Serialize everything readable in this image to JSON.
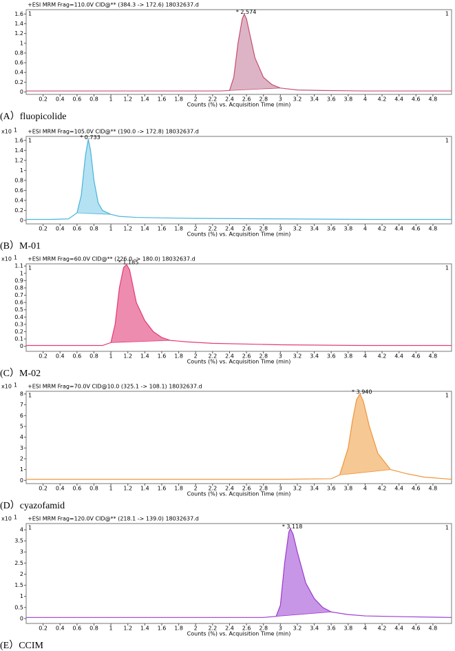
{
  "chart_data": [
    {
      "type": "line",
      "title": "+ESI MRM Frag=110.0V CID@** (384.3 -> 172.6) 18032637.d",
      "x_label": "Counts (%) vs. Acquisition Time (min)",
      "caption": "(A）fluopicolide",
      "peak_label": "* 2.574",
      "corner_labels": [
        "1",
        "1"
      ],
      "color": "#c8506e",
      "fill": "#ddb4c6",
      "x": [
        0,
        0.5,
        1,
        1.5,
        2,
        2.3,
        2.4,
        2.45,
        2.5,
        2.55,
        2.574,
        2.6,
        2.65,
        2.7,
        2.8,
        2.9,
        3.0,
        3.2,
        3.5,
        4,
        4.5,
        5.02
      ],
      "values": [
        0.02,
        0.02,
        0.02,
        0.02,
        0.02,
        0.02,
        0.03,
        0.3,
        1.0,
        1.5,
        1.6,
        1.5,
        1.1,
        0.7,
        0.3,
        0.15,
        0.08,
        0.04,
        0.03,
        0.02,
        0.02,
        0.02
      ],
      "shaded_x": [
        2.4,
        3.0
      ],
      "xlim": [
        0,
        5.02
      ],
      "ylim": [
        -0.05,
        1.69
      ],
      "xticks": [
        0.2,
        0.4,
        0.6,
        0.8,
        1,
        1.2,
        1.4,
        1.6,
        1.8,
        2,
        2.2,
        2.4,
        2.6,
        2.8,
        3,
        3.2,
        3.4,
        3.6,
        3.8,
        4,
        4.2,
        4.4,
        4.6,
        4.8
      ],
      "yticks": [
        0,
        0.2,
        0.4,
        0.6,
        0.8,
        1,
        1.2,
        1.4,
        1.6
      ]
    },
    {
      "type": "line",
      "title": "+ESI MRM Frag=105.0V CID@** (190.0 -> 172.8) 18032637.d",
      "x_label": "Counts (%) vs. Acquisition Time (min)",
      "caption": "(B）M-01",
      "peak_label": "* 0.733",
      "corner_labels": [
        "1",
        "1"
      ],
      "y_multiplier": "x10",
      "y_exponent": "1",
      "color": "#4ab4dc",
      "fill": "#b4e2f2",
      "x": [
        0,
        0.3,
        0.5,
        0.6,
        0.65,
        0.7,
        0.733,
        0.76,
        0.8,
        0.85,
        0.9,
        1.0,
        1.1,
        1.3,
        1.6,
        2,
        3,
        4,
        5.02
      ],
      "values": [
        0.02,
        0.02,
        0.03,
        0.15,
        0.5,
        1.3,
        1.62,
        1.4,
        0.8,
        0.35,
        0.2,
        0.12,
        0.08,
        0.06,
        0.05,
        0.04,
        0.03,
        0.02,
        0.02
      ],
      "shaded_x": [
        0.55,
        1.0
      ],
      "xlim": [
        0,
        5.02
      ],
      "ylim": [
        -0.07,
        1.68
      ],
      "xticks": [
        0.2,
        0.4,
        0.6,
        0.8,
        1,
        1.2,
        1.4,
        1.6,
        1.8,
        2,
        2.2,
        2.4,
        2.6,
        2.8,
        3,
        3.2,
        3.4,
        3.6,
        3.8,
        4,
        4.2,
        4.4,
        4.6,
        4.8
      ],
      "yticks": [
        0,
        0.2,
        0.4,
        0.6,
        0.8,
        1,
        1.2,
        1.4,
        1.6
      ]
    },
    {
      "type": "line",
      "title": "+ESI MRM Frag=60.0V CID@** (226.0 -> 180.0) 18032637.d",
      "x_label": "Counts (%) vs. Acquisition Time (min)",
      "caption": "(C）M-02",
      "peak_label": "* 1.185",
      "corner_labels": [
        "1",
        "1"
      ],
      "y_multiplier": "x10",
      "y_exponent": "1",
      "color": "#e33c74",
      "fill": "#ee8cb0",
      "x": [
        0,
        0.5,
        0.9,
        1.0,
        1.05,
        1.1,
        1.15,
        1.185,
        1.22,
        1.3,
        1.4,
        1.5,
        1.6,
        1.7,
        1.9,
        2.2,
        3,
        4,
        5.02
      ],
      "values": [
        0.01,
        0.01,
        0.01,
        0.05,
        0.3,
        0.8,
        1.08,
        1.12,
        1.05,
        0.6,
        0.35,
        0.2,
        0.12,
        0.08,
        0.06,
        0.04,
        0.02,
        0.01,
        0.01
      ],
      "shaded_x": [
        0.97,
        1.7
      ],
      "xlim": [
        0,
        5.02
      ],
      "ylim": [
        -0.07,
        1.13
      ],
      "xticks": [
        0.2,
        0.4,
        0.6,
        0.8,
        1,
        1.2,
        1.4,
        1.6,
        1.8,
        2,
        2.2,
        2.4,
        2.6,
        2.8,
        3,
        3.2,
        3.4,
        3.6,
        3.8,
        4,
        4.2,
        4.4,
        4.6,
        4.8
      ],
      "yticks": [
        0,
        0.1,
        0.2,
        0.3,
        0.4,
        0.5,
        0.6,
        0.7,
        0.8,
        0.9,
        1,
        1.1
      ]
    },
    {
      "type": "line",
      "title": "+ESI MRM Frag=70.0V CID@10.0 (325.1 -> 108.1) 18032637.d",
      "x_label": "Counts (%) vs. Acquisition Time (min)",
      "caption": "(D）cyazofamid",
      "peak_label": "* 3.940",
      "corner_labels": [
        "1",
        "1"
      ],
      "y_multiplier": "x10",
      "y_exponent": "1",
      "color": "#f0963c",
      "fill": "#f6c894",
      "x": [
        0,
        1,
        2,
        3,
        3.6,
        3.7,
        3.8,
        3.85,
        3.9,
        3.94,
        3.98,
        4.05,
        4.15,
        4.3,
        4.5,
        4.7,
        5.02
      ],
      "values": [
        0.1,
        0.1,
        0.1,
        0.1,
        0.15,
        0.5,
        3,
        5.5,
        7.5,
        8,
        7.3,
        5,
        2.5,
        1,
        0.6,
        0.3,
        0.1
      ],
      "shaded_x": [
        3.65,
        4.45
      ],
      "xlim": [
        0,
        5.02
      ],
      "ylim": [
        -0.3,
        8.25
      ],
      "xticks": [
        0.2,
        0.4,
        0.6,
        0.8,
        1,
        1.2,
        1.4,
        1.6,
        1.8,
        2,
        2.2,
        2.4,
        2.6,
        2.8,
        3,
        3.2,
        3.4,
        3.6,
        3.8,
        4,
        4.2,
        4.4,
        4.6,
        4.8
      ],
      "yticks": [
        0,
        1,
        2,
        3,
        4,
        5,
        6,
        7,
        8
      ]
    },
    {
      "type": "line",
      "title": "+ESI MRM Frag=120.0V CID@** (218.1 -> 139.0) 18032637.d",
      "x_label": "Counts (%) vs. Acquisition Time (min)",
      "caption": "(E）CCIM",
      "peak_label": "* 3.118",
      "corner_labels": [
        "1",
        "1"
      ],
      "y_multiplier": "x10",
      "y_exponent": "1",
      "color": "#9c3cd0",
      "fill": "#c896e6",
      "x": [
        0,
        1,
        2,
        2.8,
        2.95,
        3.0,
        3.05,
        3.1,
        3.118,
        3.15,
        3.2,
        3.3,
        3.4,
        3.5,
        3.6,
        3.8,
        4,
        4.5,
        5.02
      ],
      "values": [
        0.05,
        0.05,
        0.05,
        0.05,
        0.1,
        0.6,
        2.5,
        3.9,
        4.05,
        3.8,
        3.0,
        1.6,
        0.9,
        0.5,
        0.3,
        0.18,
        0.12,
        0.08,
        0.05
      ],
      "shaded_x": [
        2.95,
        3.7
      ],
      "xlim": [
        0,
        5.02
      ],
      "ylim": [
        -0.22,
        4.28
      ],
      "xticks": [
        0.2,
        0.4,
        0.6,
        0.8,
        1,
        1.2,
        1.4,
        1.6,
        1.8,
        2,
        2.2,
        2.4,
        2.6,
        2.8,
        3,
        3.2,
        3.4,
        3.6,
        3.8,
        4,
        4.2,
        4.4,
        4.6,
        4.8
      ],
      "yticks": [
        0,
        0.5,
        1,
        1.5,
        2,
        2.5,
        3,
        3.5,
        4
      ]
    }
  ]
}
